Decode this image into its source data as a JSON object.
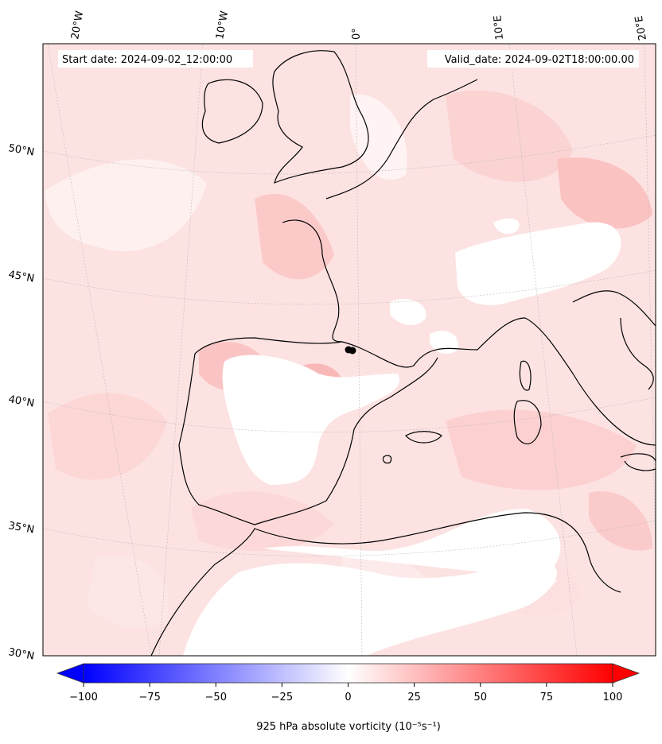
{
  "map": {
    "start_date_label": "Start date: 2024-09-02_12:00:00",
    "valid_date_label": "Valid_date: 2024-09-02T18:00:00.00",
    "lon_labels": [
      "20°W",
      "10°W",
      "0°",
      "10°E",
      "20°E"
    ],
    "lat_labels": [
      "50°N",
      "45°N",
      "40°N",
      "35°N",
      "30°N"
    ]
  },
  "colorbar": {
    "title": "925 hPa absolute vorticity",
    "units": "(10⁻⁵s⁻¹)",
    "range": [
      -100,
      100
    ],
    "ticks": [
      "−100",
      "−75",
      "−50",
      "−25",
      "0",
      "25",
      "50",
      "75",
      "100"
    ],
    "colors": {
      "negative": "#0000ff",
      "zero": "#ffffff",
      "positive": "#ff0000"
    }
  }
}
